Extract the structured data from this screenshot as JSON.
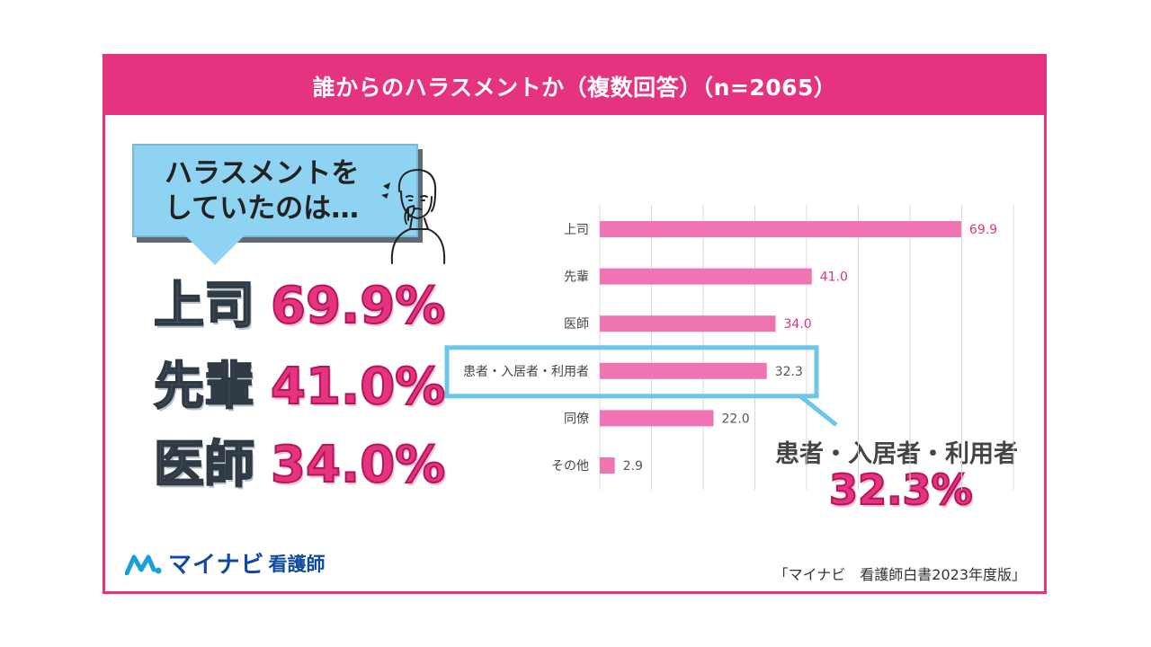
{
  "header": {
    "title": "誰からのハラスメントか（複数回答）（n=2065）"
  },
  "bubble": {
    "line1": "ハラスメントを",
    "line2": "していたのは…"
  },
  "highlights": [
    {
      "label": "上司",
      "value": "69.9%"
    },
    {
      "label": "先輩",
      "value": "41.0%"
    },
    {
      "label": "医師",
      "value": "34.0%"
    }
  ],
  "callout": {
    "label": "患者・入居者・利用者",
    "value": "32.3%"
  },
  "logo": {
    "brand": "マイナビ",
    "sub": "看護師"
  },
  "source": "「マイナビ　看護師白書2023年度版」",
  "colors": {
    "accent": "#e5337f",
    "bar": "#ef74b1",
    "highlight_box": "#6cc6ea"
  },
  "chart_data": {
    "type": "bar",
    "orientation": "horizontal",
    "categories": [
      "上司",
      "先輩",
      "医師",
      "患者・入居者・利用者",
      "同僚",
      "その他"
    ],
    "values": [
      69.9,
      41.0,
      34.0,
      32.3,
      22.0,
      2.9
    ],
    "value_labels": [
      "69.9",
      "41.0",
      "34.0",
      "32.3",
      "22.0",
      "2.9"
    ],
    "highlighted_category": "患者・入居者・利用者",
    "xlim": [
      0,
      80
    ],
    "grid": true
  }
}
